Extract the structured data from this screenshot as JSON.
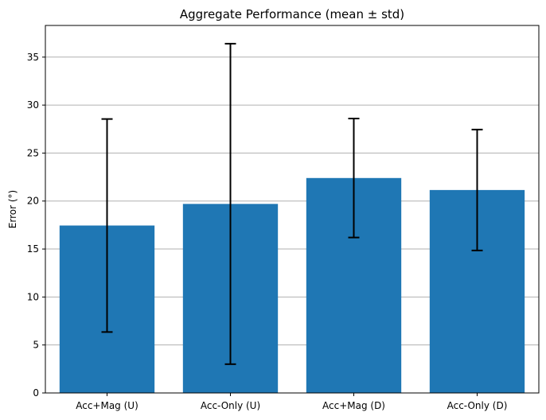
{
  "chart_data": {
    "type": "bar",
    "title": "Aggregate Performance (mean ± std)",
    "xlabel": "",
    "ylabel": "Error (°)",
    "categories": [
      "Acc+Mag (U)",
      "Acc-Only (U)",
      "Acc+Mag (D)",
      "Acc-Only (D)"
    ],
    "values": [
      17.45,
      19.7,
      22.4,
      21.15
    ],
    "errors": [
      11.1,
      16.7,
      6.2,
      6.3
    ],
    "ylim": [
      0,
      38.3
    ],
    "yticks": [
      0,
      5,
      10,
      15,
      20,
      25,
      30,
      35
    ],
    "grid": "y",
    "bar_color": "#1f77b4",
    "error_color": "#000000"
  }
}
